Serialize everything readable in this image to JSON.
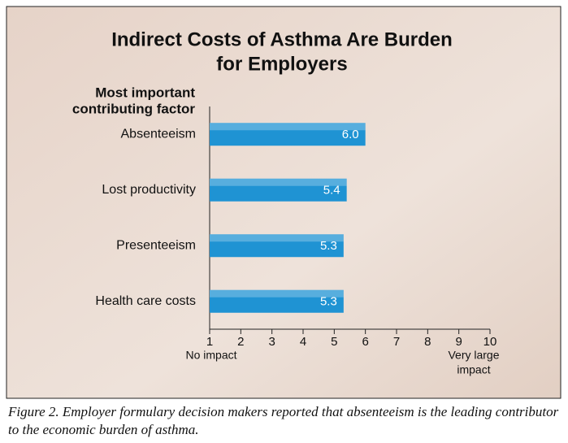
{
  "chart_data": {
    "type": "hbar",
    "title": [
      "Indirect Costs of Asthma Are Burden",
      "for Employers"
    ],
    "y_axis_title": [
      "Most important",
      "contributing factor"
    ],
    "categories": [
      "Absenteeism",
      "Lost productivity",
      "Presenteeism",
      "Health care costs"
    ],
    "values": [
      6.0,
      5.4,
      5.3,
      5.3
    ],
    "value_labels": [
      "6.0",
      "5.4",
      "5.3",
      "5.3"
    ],
    "color": "#1f93d3",
    "xlim": [
      1,
      10
    ],
    "xticks": [
      1,
      2,
      3,
      4,
      5,
      6,
      7,
      8,
      9,
      10
    ],
    "x_min_label": "No impact",
    "x_max_label": [
      "Very large",
      "impact"
    ]
  },
  "caption": "Figure 2. Employer formulary decision makers reported that absenteeism is the leading contributor to the economic burden of asthma."
}
